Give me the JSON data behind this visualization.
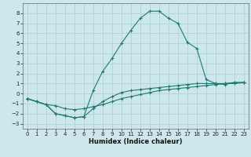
{
  "xlabel": "Humidex (Indice chaleur)",
  "background_color": "#cde8ec",
  "grid_color": "#a8cdd4",
  "line_color": "#1e7a70",
  "xlim": [
    -0.5,
    23.5
  ],
  "ylim": [
    -3.5,
    9.0
  ],
  "xticks": [
    0,
    1,
    2,
    3,
    4,
    5,
    6,
    7,
    8,
    9,
    10,
    11,
    12,
    13,
    14,
    15,
    16,
    17,
    18,
    19,
    20,
    21,
    22,
    23
  ],
  "yticks": [
    -3,
    -2,
    -1,
    0,
    1,
    2,
    3,
    4,
    5,
    6,
    7,
    8
  ],
  "series": [
    {
      "x": [
        0,
        1,
        2,
        3,
        4,
        5,
        6,
        7,
        8,
        9,
        10,
        11,
        12,
        13,
        14,
        15,
        16,
        17,
        18,
        19,
        20,
        21,
        22,
        23
      ],
      "y": [
        -0.5,
        -0.8,
        -1.1,
        -1.2,
        -1.5,
        -1.6,
        -1.5,
        -1.3,
        -1.1,
        -0.8,
        -0.5,
        -0.3,
        -0.1,
        0.1,
        0.3,
        0.4,
        0.5,
        0.6,
        0.7,
        0.8,
        0.9,
        1.0,
        1.0,
        1.1
      ]
    },
    {
      "x": [
        0,
        1,
        2,
        3,
        4,
        5,
        6,
        7,
        8,
        9,
        10,
        11,
        12,
        13,
        14,
        15,
        16,
        17,
        18,
        19,
        20,
        21,
        22,
        23
      ],
      "y": [
        -0.5,
        -0.8,
        -1.1,
        -2.0,
        -2.2,
        -2.4,
        -2.3,
        -1.5,
        -0.8,
        -0.3,
        0.1,
        0.3,
        0.4,
        0.5,
        0.6,
        0.7,
        0.8,
        0.9,
        1.0,
        1.0,
        1.0,
        1.0,
        1.1,
        1.1
      ]
    },
    {
      "x": [
        0,
        1,
        2,
        3,
        4,
        5,
        6,
        7,
        8,
        9,
        10,
        11,
        12,
        13,
        14,
        15,
        16,
        17,
        18,
        19,
        20,
        21,
        22,
        23
      ],
      "y": [
        -0.5,
        -0.8,
        -1.1,
        -2.0,
        -2.2,
        -2.4,
        -2.3,
        0.3,
        2.2,
        3.5,
        5.0,
        6.3,
        7.5,
        8.2,
        8.2,
        7.5,
        7.0,
        5.1,
        4.5,
        1.4,
        1.0,
        0.9,
        1.1,
        1.1
      ]
    }
  ]
}
